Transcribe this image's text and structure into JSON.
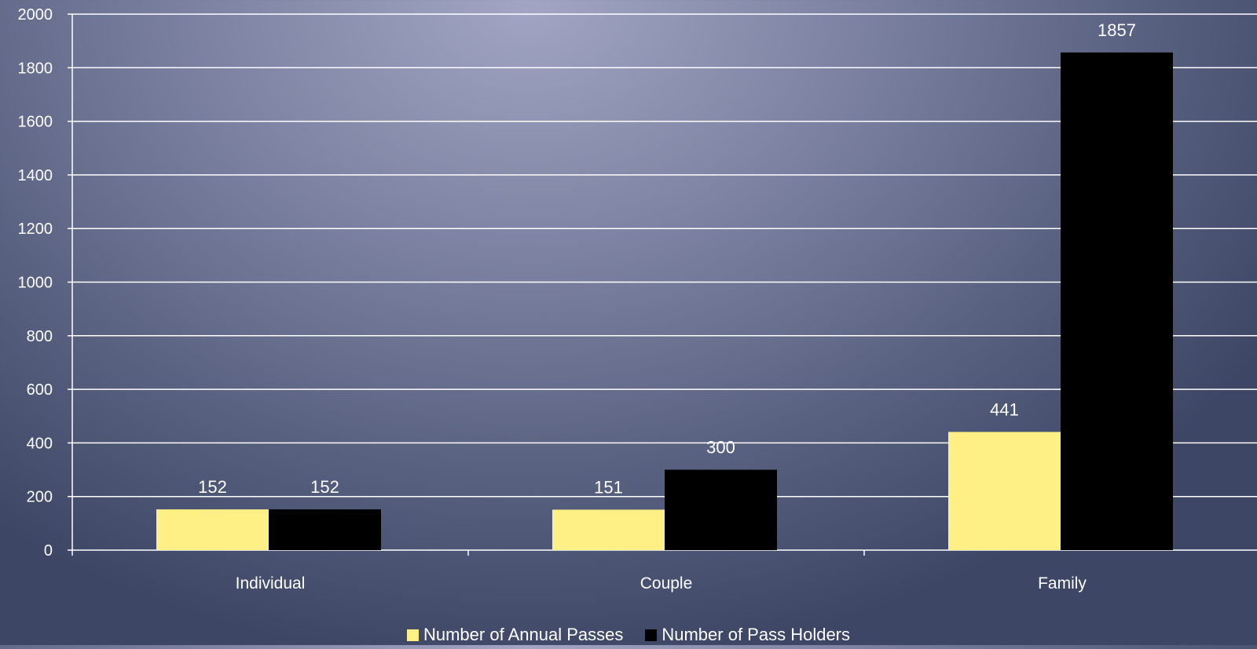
{
  "chart_data": {
    "type": "bar",
    "title": "",
    "xlabel": "",
    "ylabel": "",
    "categories": [
      "Individual",
      "Couple",
      "Family"
    ],
    "ylim": [
      0,
      2000
    ],
    "yticks": [
      0,
      200,
      400,
      600,
      800,
      1000,
      1200,
      1400,
      1600,
      1800,
      2000
    ],
    "grid": true,
    "legend_position": "bottom",
    "series": [
      {
        "name": "Number of Annual Passes",
        "color": "#fff085",
        "values": [
          152,
          151,
          441
        ]
      },
      {
        "name": "Number of Pass Holders",
        "color": "#000000",
        "values": [
          152,
          300,
          1857
        ]
      }
    ]
  }
}
